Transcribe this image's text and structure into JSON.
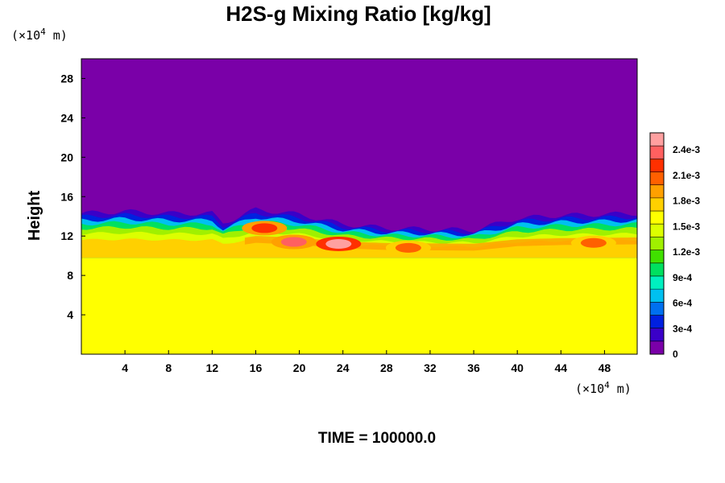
{
  "chart_data": {
    "type": "heatmap",
    "title": "H2S-g Mixing Ratio [kg/kg]",
    "xlabel": "",
    "ylabel": "Height",
    "x_unit_label": "(×10",
    "x_unit_exp": "4",
    "x_unit_suffix": " m)",
    "y_unit_label": "(×10",
    "y_unit_exp": "4",
    "y_unit_suffix": " m)",
    "xlim": [
      0,
      51
    ],
    "ylim": [
      0,
      30
    ],
    "x_ticks": [
      4,
      8,
      12,
      16,
      20,
      24,
      28,
      32,
      36,
      40,
      44,
      48
    ],
    "y_ticks": [
      4,
      8,
      12,
      16,
      20,
      24,
      28
    ],
    "colorbar": {
      "range": [
        0,
        0.0026
      ],
      "tick_values": [
        0,
        0.0003,
        0.0006,
        0.0009,
        0.0012,
        0.0015,
        0.0018,
        0.0021,
        0.0024
      ],
      "tick_labels": [
        "0",
        "3e-4",
        "6e-4",
        "9e-4",
        "1.2e-3",
        "1.5e-3",
        "1.8e-3",
        "2.1e-3",
        "2.4e-3"
      ],
      "colors": [
        "#7a00a8",
        "#3a00c8",
        "#0020e0",
        "#0070f0",
        "#00c0f0",
        "#00f0c0",
        "#00e060",
        "#40e000",
        "#a0f000",
        "#dcff00",
        "#ffff00",
        "#ffd000",
        "#ffa000",
        "#ff6000",
        "#ff3000",
        "#ff6060",
        "#ffa0a0"
      ]
    },
    "background_value": 0,
    "lower_layer_value": 0.00168,
    "interface_height_profile": {
      "x": [
        0,
        4,
        8,
        12,
        13,
        16,
        20,
        24,
        28,
        32,
        36,
        40,
        44,
        48,
        51
      ],
      "top_y": [
        14.3,
        14.5,
        14.3,
        14.3,
        13.3,
        14.7,
        14.2,
        13.2,
        12.8,
        12.7,
        12.6,
        13.8,
        14.1,
        14.2,
        14.3
      ]
    },
    "lower_boundary_y": 9.8,
    "hotspots": [
      {
        "x": 23.6,
        "y": 11.2,
        "value": 0.0026
      },
      {
        "x": 19.5,
        "y": 11.4,
        "value": 0.0023
      },
      {
        "x": 16.8,
        "y": 12.8,
        "value": 0.0022
      },
      {
        "x": 30.0,
        "y": 10.8,
        "value": 0.0021
      },
      {
        "x": 47.0,
        "y": 11.3,
        "value": 0.002
      }
    ]
  },
  "time_label": "TIME = 100000.0"
}
